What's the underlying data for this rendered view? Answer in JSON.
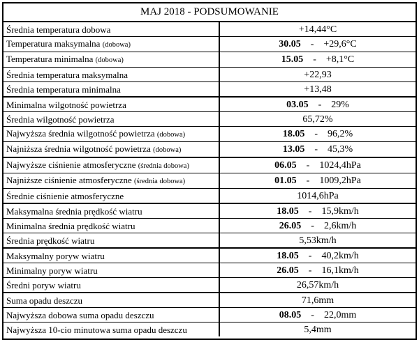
{
  "title": "MAJ 2018 - PODSUMOWANIE",
  "rows": [
    {
      "label": "Średnia temperatura dobowa",
      "label_small": "",
      "date": "",
      "value": "+14,44°C",
      "sep": false
    },
    {
      "label": "Temperatura maksymalna",
      "label_small": "(dobowa)",
      "date": "30.05",
      "value": "+29,6°C",
      "sep": false
    },
    {
      "label": "Temperatura minimalna",
      "label_small": "(dobowa)",
      "date": "15.05",
      "value": "+8,1°C",
      "sep": false
    },
    {
      "label": "Średnia temperatura maksymalna",
      "label_small": "",
      "date": "",
      "value": "+22,93",
      "sep": false
    },
    {
      "label": "Średnia temperatura minimalna",
      "label_small": "",
      "date": "",
      "value": "+13,48",
      "sep": true
    },
    {
      "label": "Minimalna wilgotność powietrza",
      "label_small": "",
      "date": "03.05",
      "value": "29%",
      "sep": false
    },
    {
      "label": "Średnia wilgotność powietrza",
      "label_small": "",
      "date": "",
      "value": "65,72%",
      "sep": false
    },
    {
      "label": "Najwyższa średnia wilgotność powietrza",
      "label_small": "(dobowa)",
      "date": "18.05",
      "value": "96,2%",
      "sep": false
    },
    {
      "label": "Najniższa średnia wilgotność powietrza",
      "label_small": "(dobowa)",
      "date": "13.05",
      "value": "45,3%",
      "sep": true
    },
    {
      "label": "Najwyższe ciśnienie atmosferyczne",
      "label_small": "(średnia dobowa)",
      "date": "06.05",
      "value": "1024,4hPa",
      "sep": false
    },
    {
      "label": "Najniższe ciśnienie atmosferyczne",
      "label_small": "(średnia dobowa)",
      "date": "01.05",
      "value": "1009,2hPa",
      "sep": false
    },
    {
      "label": "Średnie ciśnienie atmosferyczne",
      "label_small": "",
      "date": "",
      "value": "1014,6hPa",
      "sep": true
    },
    {
      "label": "Maksymalna średnia prędkość wiatru",
      "label_small": "",
      "date": "18.05",
      "value": "15,9km/h",
      "sep": false
    },
    {
      "label": "Minimalna średnia prędkość wiatru",
      "label_small": "",
      "date": "26.05",
      "value": "2,6km/h",
      "sep": false
    },
    {
      "label": "Średnia prędkość wiatru",
      "label_small": "",
      "date": "",
      "value": "5,53km/h",
      "sep": true
    },
    {
      "label": "Maksymalny poryw wiatru",
      "label_small": "",
      "date": "18.05",
      "value": "40,2km/h",
      "sep": false
    },
    {
      "label": "Minimalny poryw wiatru",
      "label_small": "",
      "date": "26.05",
      "value": "16,1km/h",
      "sep": false
    },
    {
      "label": "Średni poryw wiatru",
      "label_small": "",
      "date": "",
      "value": "26,57km/h",
      "sep": true
    },
    {
      "label": "Suma opadu deszczu",
      "label_small": "",
      "date": "",
      "value": "71,6mm",
      "sep": false
    },
    {
      "label": "Najwyższa dobowa suma opadu deszczu",
      "label_small": "",
      "date": "08.05",
      "value": "22,0mm",
      "sep": false
    },
    {
      "label": "Najwyższa 10-cio minutowa suma opadu deszczu",
      "label_small": "",
      "date": "",
      "value": "5,4mm",
      "sep": false
    }
  ],
  "separator": "-"
}
